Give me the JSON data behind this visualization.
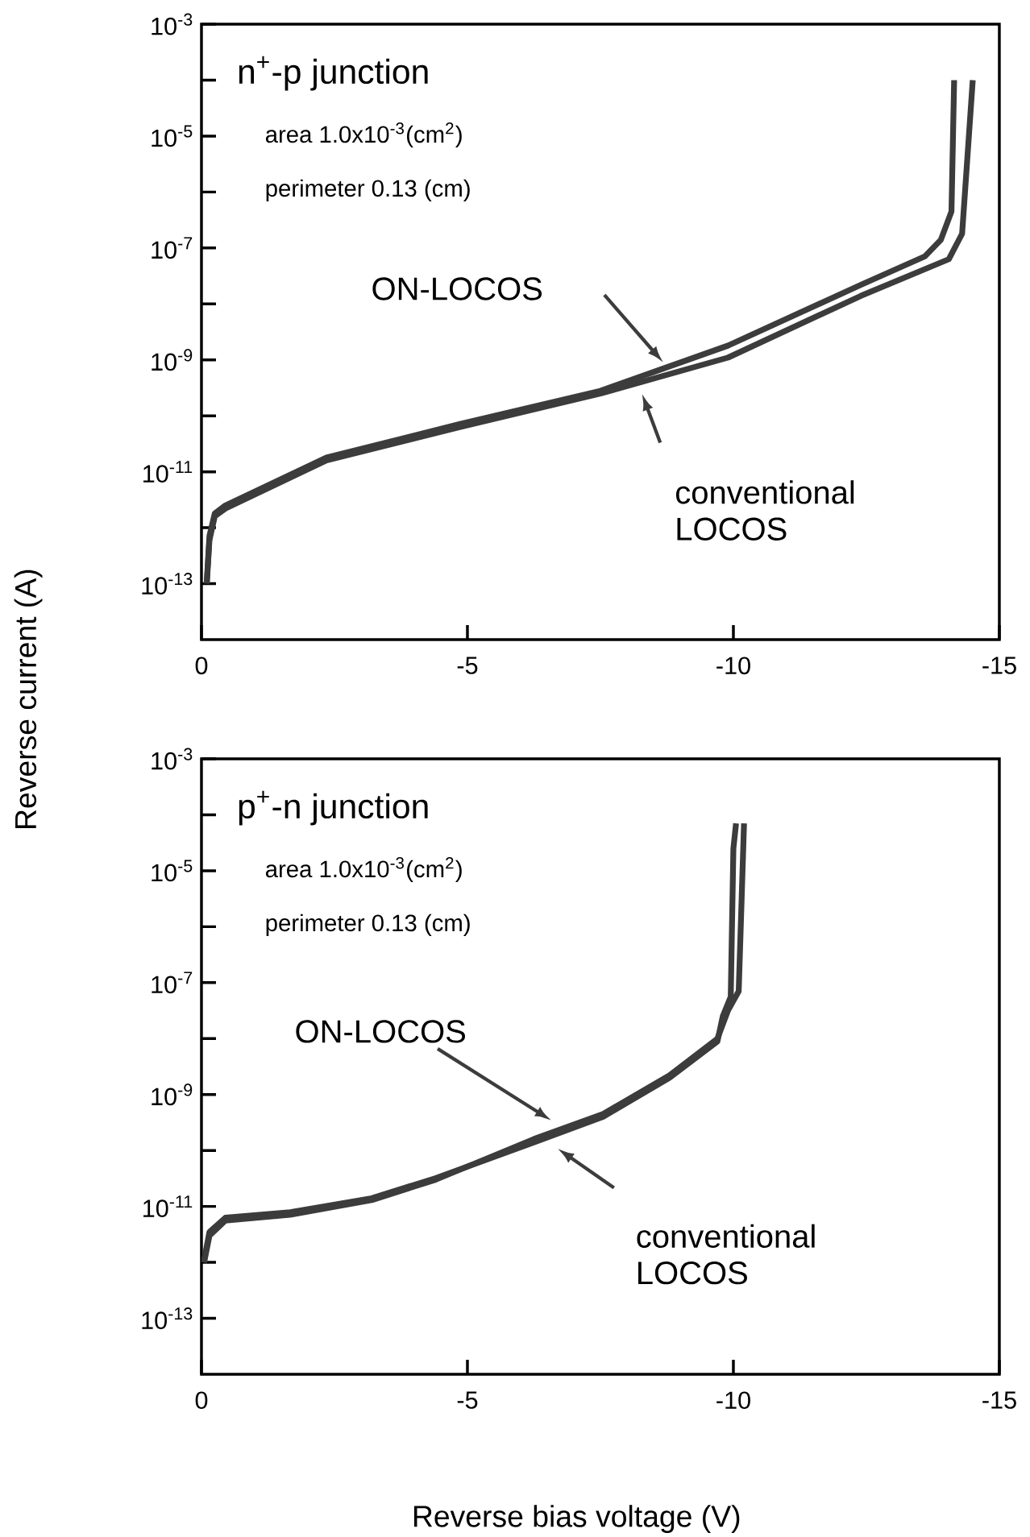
{
  "chart_data": [
    {
      "type": "line",
      "title": "n$^{+}$-p junction",
      "ylabel": "Reverse current (A)",
      "log": "y",
      "xlim": [
        0,
        -15
      ],
      "xticks": [
        0,
        -5,
        -10,
        -15
      ],
      "ylim": [
        1e-14,
        0.001
      ],
      "yticks": [
        {
          "value": 0.001,
          "label": "10$^{-3}$"
        },
        {
          "value": 0.0001,
          "label": null
        },
        {
          "value": 1e-05,
          "label": "10$^{-5}$"
        },
        {
          "value": 1e-06,
          "label": null
        },
        {
          "value": 1e-07,
          "label": "10$^{-7}$"
        },
        {
          "value": 1e-08,
          "label": null
        },
        {
          "value": 1e-09,
          "label": "10$^{-9}$"
        },
        {
          "value": 1e-10,
          "label": null
        },
        {
          "value": 1e-11,
          "label": "10$^{-11}$"
        },
        {
          "value": 1e-12,
          "label": null
        },
        {
          "value": 1e-13,
          "label": "10$^{-13}$"
        }
      ],
      "annotations": [
        "area 1.0x10$^{-3}$(cm$^{2}$)",
        "perimeter 0.13 (cm)",
        "ON-LOCOS",
        "conventional LOCOS"
      ],
      "series": [
        {
          "color": "#3c3c3c",
          "x": [
            -0.1,
            -0.15,
            -0.25,
            -0.45,
            -2.35,
            -4.85,
            -7.5,
            -9.9,
            -12.4,
            -13.6,
            -13.9,
            -14.1,
            -14.15
          ],
          "values": [
            1.1e-13,
            7.1e-13,
            1.8e-12,
            2.5e-12,
            1.8e-11,
            7.1e-11,
            2.8e-10,
            1.8e-09,
            2.2e-08,
            7.1e-08,
            1.4e-07,
            4.5e-07,
            0.0001
          ]
        },
        {
          "color": "#3c3c3c",
          "x": [
            -0.1,
            -0.15,
            -0.25,
            -0.45,
            -2.35,
            -4.85,
            -7.5,
            -9.9,
            -12.4,
            -14.05,
            -14.3,
            -14.5
          ],
          "values": [
            1e-13,
            6e-13,
            1.6e-12,
            2.2e-12,
            1.6e-11,
            6.3e-11,
            2.5e-10,
            1.1e-09,
            1.4e-08,
            6.3e-08,
            1.8e-07,
            0.0001
          ]
        }
      ]
    },
    {
      "type": "line",
      "title": "p$^{+}$-n junction",
      "xlabel": "Reverse bias voltage (V)",
      "log": "y",
      "xlim": [
        0,
        -15
      ],
      "xticks": [
        0,
        -5,
        -10,
        -15
      ],
      "ylim": [
        1e-14,
        0.001
      ],
      "yticks": [
        {
          "value": 0.001,
          "label": "10$^{-3}$"
        },
        {
          "value": 0.0001,
          "label": null
        },
        {
          "value": 1e-05,
          "label": "10$^{-5}$"
        },
        {
          "value": 1e-06,
          "label": null
        },
        {
          "value": 1e-07,
          "label": "10$^{-7}$"
        },
        {
          "value": 1e-08,
          "label": null
        },
        {
          "value": 1e-09,
          "label": "10$^{-9}$"
        },
        {
          "value": 1e-10,
          "label": null
        },
        {
          "value": 1e-11,
          "label": "10$^{-11}$"
        },
        {
          "value": 1e-12,
          "label": null
        },
        {
          "value": 1e-13,
          "label": "10$^{-13}$"
        }
      ],
      "annotations": [
        "area 1.0x10$^{-3}$(cm$^{2}$)",
        "perimeter 0.13 (cm)",
        "ON-LOCOS",
        "conventional LOCOS"
      ],
      "series": [
        {
          "color": "#3c3c3c",
          "x": [
            -0.05,
            -0.15,
            -0.45,
            -1.67,
            -3.2,
            -4.4,
            -6.25,
            -7.55,
            -8.8,
            -9.7,
            -9.8,
            -9.95,
            -10.0,
            -10.05
          ],
          "values": [
            1.1e-12,
            3.5e-12,
            6.3e-12,
            7.9e-12,
            1.4e-11,
            3.2e-11,
            1.4e-10,
            4e-10,
            2e-09,
            8.9e-09,
            2.5e-08,
            5.6e-08,
            2.5e-05,
            7e-05
          ]
        },
        {
          "color": "#3c3c3c",
          "x": [
            -0.05,
            -0.15,
            -0.45,
            -1.67,
            -3.2,
            -4.4,
            -6.25,
            -7.55,
            -8.8,
            -9.7,
            -9.9,
            -10.1,
            -10.2
          ],
          "values": [
            1e-12,
            3e-12,
            5.6e-12,
            7.1e-12,
            1.3e-11,
            3e-11,
            1.6e-10,
            4.5e-10,
            2.2e-09,
            1e-08,
            3.2e-08,
            7e-08,
            7e-05
          ]
        }
      ]
    }
  ]
}
